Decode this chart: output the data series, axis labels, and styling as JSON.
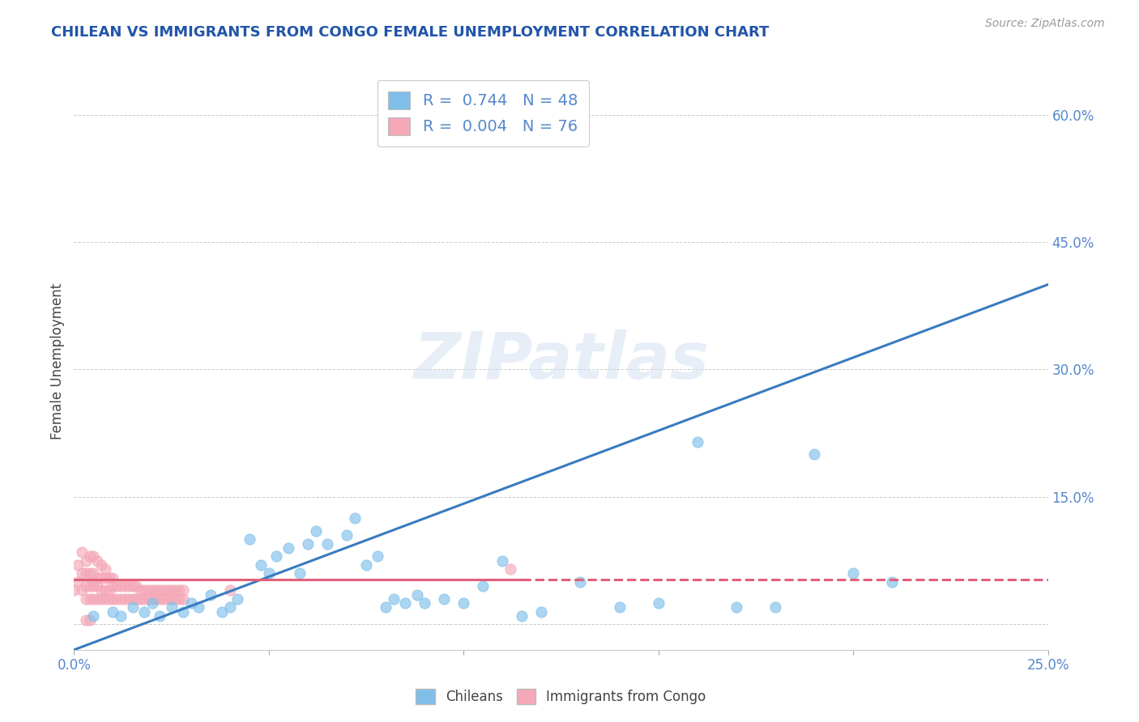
{
  "title": "CHILEAN VS IMMIGRANTS FROM CONGO FEMALE UNEMPLOYMENT CORRELATION CHART",
  "source": "Source: ZipAtlas.com",
  "ylabel": "Female Unemployment",
  "xmin": 0.0,
  "xmax": 0.25,
  "ymin": -0.03,
  "ymax": 0.65,
  "right_yticks": [
    0.0,
    0.15,
    0.3,
    0.45,
    0.6
  ],
  "right_yticklabels": [
    "",
    "15.0%",
    "30.0%",
    "45.0%",
    "60.0%"
  ],
  "xticks": [
    0.0,
    0.05,
    0.1,
    0.15,
    0.2,
    0.25
  ],
  "xticklabels": [
    "0.0%",
    "",
    "",
    "",
    "",
    "25.0%"
  ],
  "legend_label_1": "R =  0.744   N = 48",
  "legend_label_2": "R =  0.004   N = 76",
  "chileans_color": "#7fbfea",
  "congo_color": "#f4a8b8",
  "trend_chileans_color": "#3a7bbf",
  "trend_congo_color": "#e0607a",
  "watermark": "ZIPatlas",
  "title_color": "#2255aa",
  "axis_label_color": "#444444",
  "tick_color": "#5588cc",
  "grid_color": "#cccccc",
  "legend_color": "#5588cc",
  "chileans_x": [
    0.005,
    0.01,
    0.012,
    0.015,
    0.018,
    0.02,
    0.022,
    0.025,
    0.028,
    0.03,
    0.032,
    0.035,
    0.038,
    0.04,
    0.042,
    0.045,
    0.048,
    0.05,
    0.052,
    0.055,
    0.058,
    0.06,
    0.062,
    0.065,
    0.07,
    0.072,
    0.075,
    0.078,
    0.08,
    0.082,
    0.085,
    0.088,
    0.09,
    0.095,
    0.1,
    0.105,
    0.11,
    0.115,
    0.12,
    0.13,
    0.14,
    0.15,
    0.16,
    0.17,
    0.18,
    0.19,
    0.2,
    0.21
  ],
  "chileans_y": [
    0.01,
    0.015,
    0.01,
    0.02,
    0.015,
    0.025,
    0.01,
    0.02,
    0.015,
    0.025,
    0.02,
    0.035,
    0.015,
    0.02,
    0.03,
    0.1,
    0.07,
    0.06,
    0.08,
    0.09,
    0.06,
    0.095,
    0.11,
    0.095,
    0.105,
    0.125,
    0.07,
    0.08,
    0.02,
    0.03,
    0.025,
    0.035,
    0.025,
    0.03,
    0.025,
    0.045,
    0.075,
    0.01,
    0.015,
    0.05,
    0.02,
    0.025,
    0.215,
    0.02,
    0.02,
    0.2,
    0.06,
    0.05
  ],
  "congo_x": [
    0.0,
    0.001,
    0.001,
    0.002,
    0.002,
    0.002,
    0.003,
    0.003,
    0.003,
    0.003,
    0.004,
    0.004,
    0.004,
    0.004,
    0.005,
    0.005,
    0.005,
    0.005,
    0.006,
    0.006,
    0.006,
    0.006,
    0.007,
    0.007,
    0.007,
    0.007,
    0.008,
    0.008,
    0.008,
    0.008,
    0.009,
    0.009,
    0.009,
    0.01,
    0.01,
    0.01,
    0.011,
    0.011,
    0.012,
    0.012,
    0.013,
    0.013,
    0.014,
    0.014,
    0.015,
    0.015,
    0.016,
    0.016,
    0.017,
    0.017,
    0.018,
    0.018,
    0.019,
    0.019,
    0.02,
    0.02,
    0.021,
    0.021,
    0.022,
    0.022,
    0.023,
    0.023,
    0.024,
    0.024,
    0.025,
    0.025,
    0.026,
    0.026,
    0.027,
    0.027,
    0.028,
    0.028,
    0.04,
    0.112,
    0.003,
    0.004
  ],
  "congo_y": [
    0.04,
    0.05,
    0.07,
    0.04,
    0.06,
    0.085,
    0.03,
    0.045,
    0.06,
    0.075,
    0.03,
    0.045,
    0.06,
    0.08,
    0.03,
    0.045,
    0.06,
    0.08,
    0.03,
    0.045,
    0.055,
    0.075,
    0.03,
    0.04,
    0.055,
    0.07,
    0.03,
    0.04,
    0.055,
    0.065,
    0.03,
    0.04,
    0.055,
    0.03,
    0.045,
    0.055,
    0.03,
    0.045,
    0.03,
    0.045,
    0.03,
    0.045,
    0.03,
    0.045,
    0.03,
    0.045,
    0.03,
    0.045,
    0.03,
    0.04,
    0.03,
    0.04,
    0.03,
    0.04,
    0.03,
    0.04,
    0.03,
    0.04,
    0.03,
    0.04,
    0.03,
    0.04,
    0.03,
    0.04,
    0.03,
    0.04,
    0.03,
    0.04,
    0.03,
    0.04,
    0.03,
    0.04,
    0.04,
    0.065,
    0.005,
    0.005
  ],
  "trend_blue_x0": 0.0,
  "trend_blue_y0": -0.03,
  "trend_blue_x1": 0.25,
  "trend_blue_y1": 0.4,
  "trend_pink_x0": 0.0,
  "trend_pink_y0": 0.053,
  "trend_pink_x1": 0.25,
  "trend_pink_y1": 0.053
}
